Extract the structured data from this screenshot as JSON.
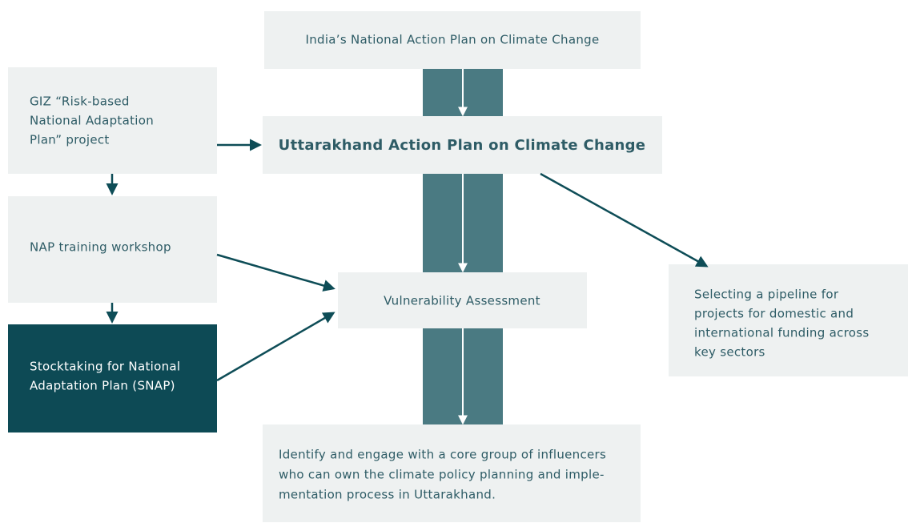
{
  "nodes": [
    {
      "label": [
        "India’s National Action Plan on Climate Change"
      ]
    },
    {
      "label": [
        "Uttarakhand Action Plan on Climate Change"
      ]
    },
    {
      "label": [
        "GIZ “Risk-based",
        "National Adaptation",
        "Plan” project"
      ]
    },
    {
      "label": [
        "NAP training workshop"
      ]
    },
    {
      "label": [
        "Stocktaking for National",
        "Adaptation Plan (SNAP)"
      ]
    },
    {
      "label": [
        "Vulnerability Assessment"
      ]
    },
    {
      "label": [
        "Selecting a pipeline for",
        "projects for domestic and",
        "international funding across",
        "key sectors"
      ]
    },
    {
      "label": [
        "Identify and engage with a core group of influencers",
        "who can own the climate policy planning and imple-",
        "mentation process in Uttarakhand."
      ]
    }
  ]
}
